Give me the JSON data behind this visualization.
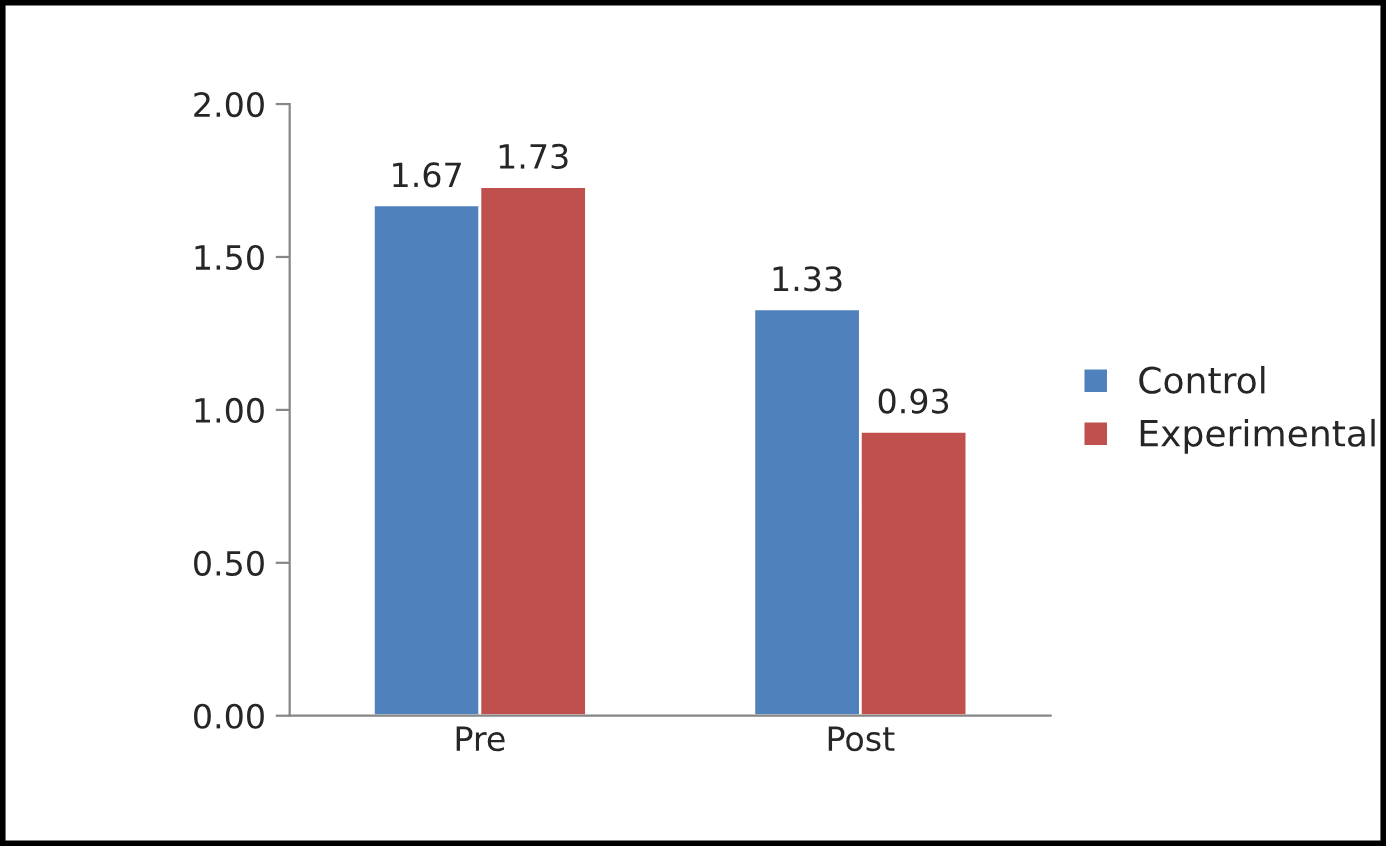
{
  "chart_data": {
    "type": "bar",
    "categories": [
      "Pre",
      "Post"
    ],
    "series": [
      {
        "name": "Control",
        "color": "#4f81bd",
        "values": [
          1.67,
          1.33
        ]
      },
      {
        "name": "Experimental",
        "color": "#c0504d",
        "values": [
          1.73,
          0.93
        ]
      }
    ],
    "ylim": [
      0,
      2
    ],
    "yticks": [
      {
        "value": 0,
        "label": "0.00"
      },
      {
        "value": 0.5,
        "label": "0.50"
      },
      {
        "value": 1,
        "label": "1.00"
      },
      {
        "value": 1.5,
        "label": "1.50"
      },
      {
        "value": 2,
        "label": "2.00"
      }
    ],
    "data_labels": true,
    "grid": false,
    "legend": "right"
  }
}
